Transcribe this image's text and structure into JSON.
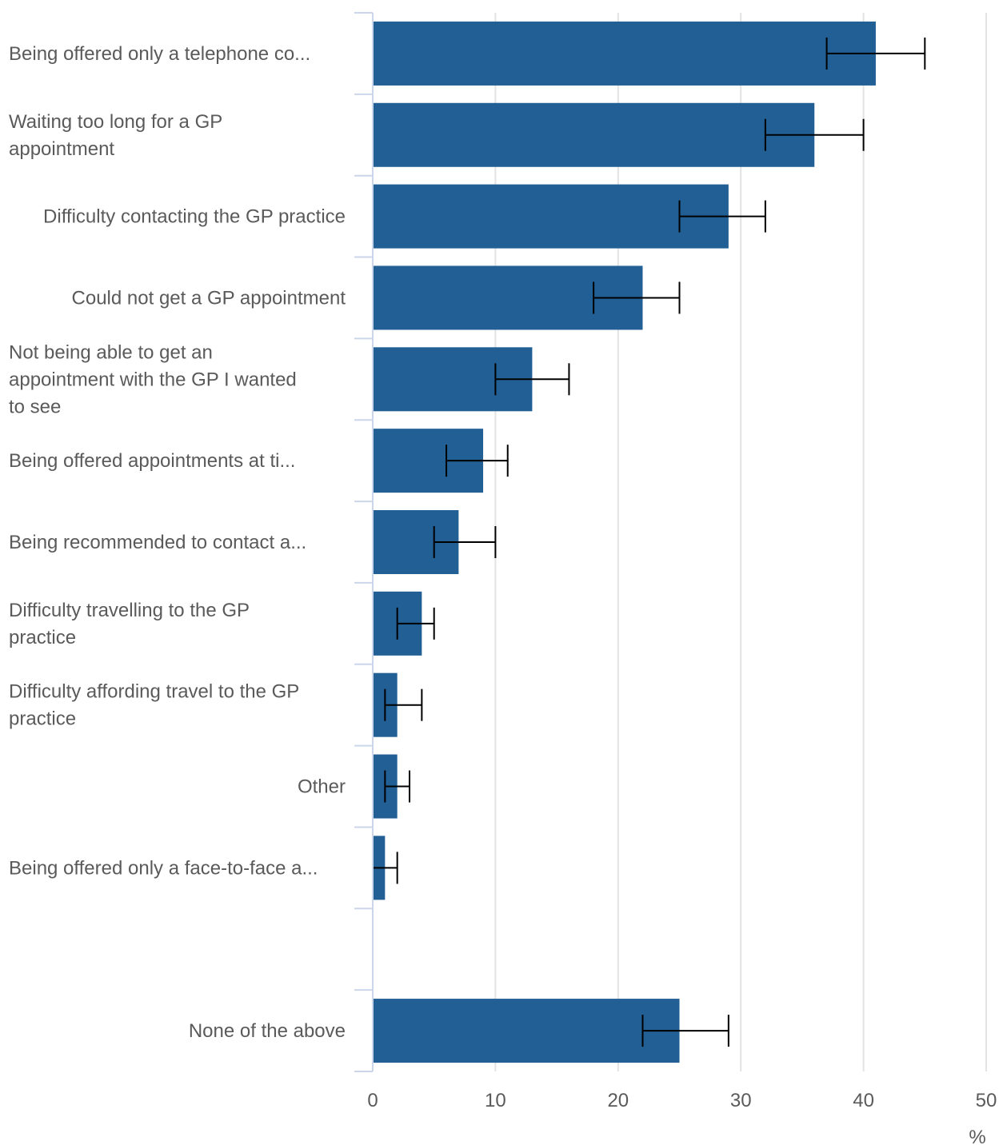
{
  "chart_data": {
    "type": "bar",
    "orientation": "horizontal",
    "categories": [
      "Being offered only a telephone co...",
      "Waiting too long for a GP appointment",
      "Difficulty contacting the GP practice",
      "Could not get a GP appointment",
      "Not being able to get an appointment with the GP I wanted to see",
      "Being offered appointments at ti...",
      "Being recommended to contact a...",
      "Difficulty travelling to the GP practice",
      "Difficulty affording travel to the GP practice",
      "Other",
      "Being offered only a face-to-face a...",
      "",
      "None of the above"
    ],
    "label_lines": [
      [
        "Being offered only a telephone co..."
      ],
      [
        "Waiting too long for a GP",
        "appointment"
      ],
      [
        "Difficulty contacting the GP practice"
      ],
      [
        "Could not get a GP appointment"
      ],
      [
        "Not being able to get an",
        "appointment with the GP I wanted",
        "to see"
      ],
      [
        "Being offered appointments at ti..."
      ],
      [
        "Being recommended to contact a..."
      ],
      [
        "Difficulty travelling to the GP",
        "practice"
      ],
      [
        "Difficulty affording travel to the GP",
        "practice"
      ],
      [
        "Other"
      ],
      [
        "Being offered only a face-to-face a..."
      ],
      [],
      [
        "None of the above"
      ]
    ],
    "label_align": [
      "left",
      "left",
      "right",
      "right",
      "left",
      "left",
      "left",
      "left",
      "left",
      "right",
      "left",
      "left",
      "right"
    ],
    "values": [
      41,
      36,
      29,
      22,
      13,
      9,
      7,
      4,
      2,
      2,
      1,
      null,
      25
    ],
    "error_low": [
      37,
      32,
      25,
      18,
      10,
      6,
      5,
      2,
      1,
      1,
      0,
      null,
      22
    ],
    "error_high": [
      45,
      40,
      32,
      25,
      16,
      11,
      10,
      5,
      4,
      3,
      2,
      null,
      29
    ],
    "xlim": [
      0,
      50
    ],
    "xticks": [
      0,
      10,
      20,
      30,
      40,
      50
    ],
    "xlabel": "%",
    "ylabel": "",
    "title": "",
    "grid": true,
    "bar_color": "#225f94",
    "error_bar_color": "#000000",
    "grid_color": "#e3e3e3",
    "axis_color": "#cbd6ea"
  }
}
